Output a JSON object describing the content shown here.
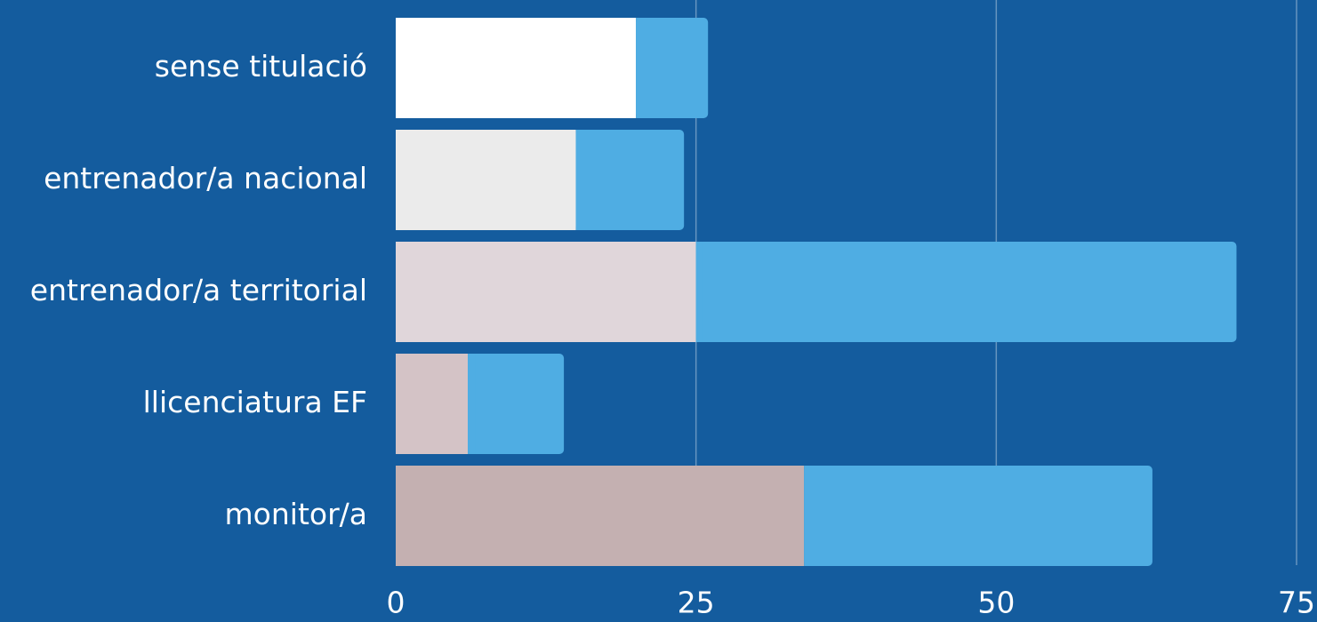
{
  "chart_data": {
    "type": "stacked-barh",
    "categories": [
      "sense titulació",
      "entrenador/a nacional",
      "entrenador/a territorial",
      "llicenciatura EF",
      "monitor/a"
    ],
    "series": [
      {
        "colors": [
          "#ffffff",
          "#ebebeb",
          "#e0d6da",
          "#d4c3c6",
          "#c4b0b1"
        ],
        "values": [
          20,
          15,
          25,
          6,
          34
        ]
      },
      {
        "color": "#4fade3",
        "values": [
          6,
          9,
          45,
          8,
          29
        ]
      }
    ],
    "xlim": [
      0,
      75
    ],
    "xticks": [
      0,
      25,
      50,
      75
    ],
    "grid": true,
    "background": "#145c9e"
  }
}
